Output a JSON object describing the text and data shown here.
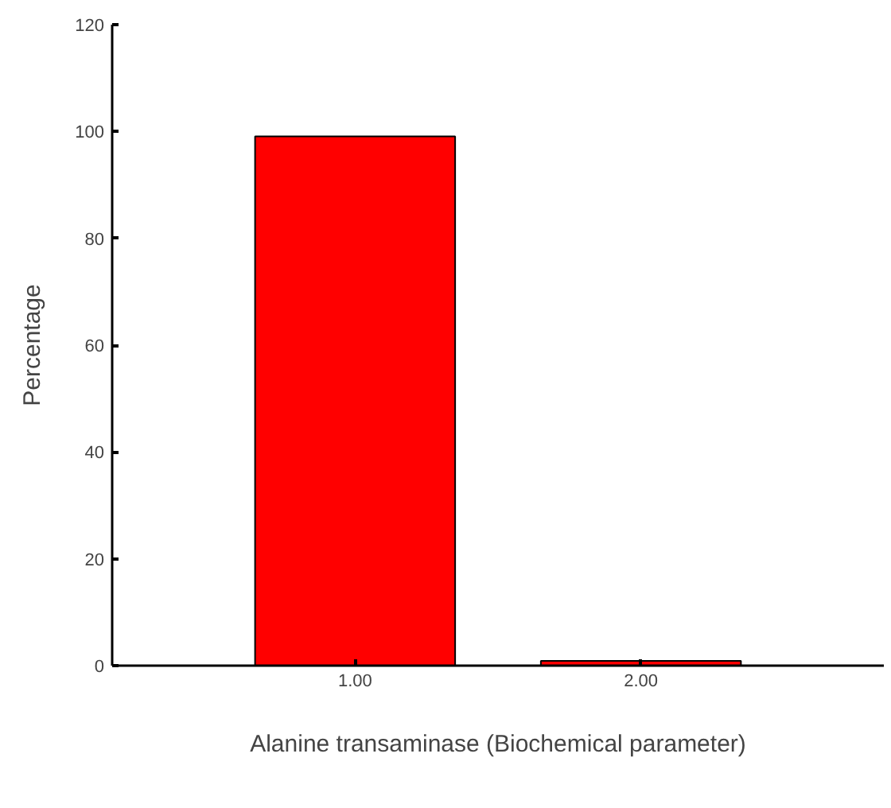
{
  "chart_data": {
    "type": "bar",
    "xlabel": "Alanine transaminase (Biochemical parameter)",
    "ylabel": "Percentage",
    "categories": [
      "1.00",
      "2.00"
    ],
    "values": [
      99.1,
      0.9
    ],
    "color": "#ff0000",
    "ylim": [
      0,
      120
    ],
    "yticks": [
      0,
      20,
      40,
      60,
      80,
      100,
      120
    ],
    "grid": false
  }
}
